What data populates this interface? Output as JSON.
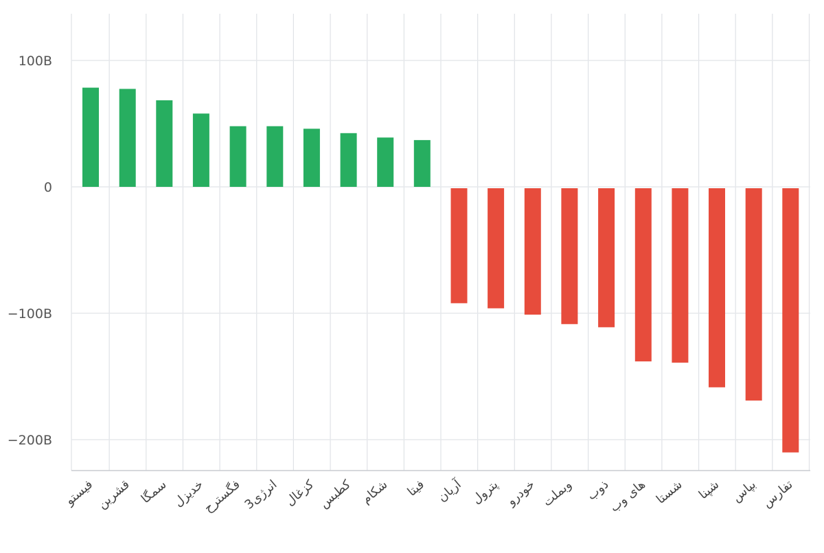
{
  "chart_data": {
    "type": "bar",
    "title": "",
    "xlabel": "",
    "ylabel": "",
    "unit_suffix": "B",
    "ylim": [
      -225,
      137
    ],
    "yticks": [
      100,
      0,
      -100,
      -200
    ],
    "ytick_labels": [
      "100B",
      "0",
      "−100B",
      "−200B"
    ],
    "grid": true,
    "legend": "none",
    "positive_color": "#27ae60",
    "negative_color": "#e74c3c",
    "categories": [
      "فیستو",
      "قشرین",
      "سمگا",
      "خدیزل",
      "فگسترح",
      "انرژی3",
      "کزغال",
      "کطبس",
      "شکام",
      "فیتا",
      "آریان",
      "پترول",
      "خودرو",
      "وبملت",
      "ذوب",
      "های وب",
      "شستا",
      "شپنا",
      "بپاس",
      "تفارس"
    ],
    "values": [
      78.5,
      77.5,
      68.5,
      58,
      48,
      48,
      46,
      42.5,
      39,
      37,
      -91,
      -95,
      -100,
      -107.5,
      -110,
      -137,
      -138,
      -157.5,
      -168,
      -209
    ]
  }
}
